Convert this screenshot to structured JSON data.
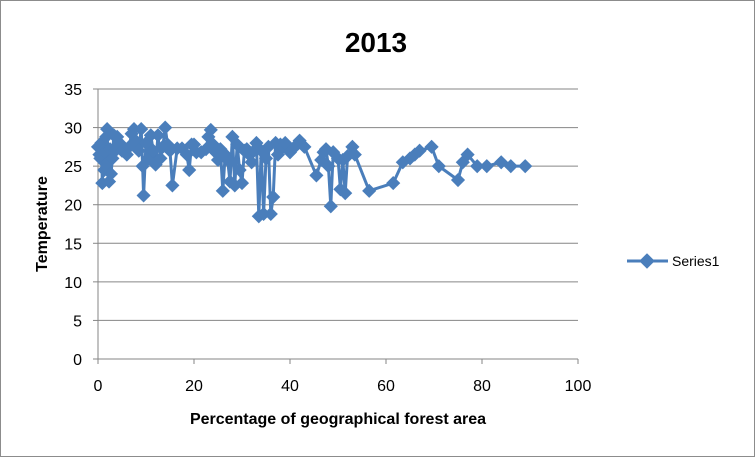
{
  "chart_data": {
    "type": "line",
    "title": "2013",
    "xlabel": "Percentage of geographical forest area",
    "ylabel": "Temperature",
    "xlim": [
      0,
      100
    ],
    "ylim": [
      0,
      35
    ],
    "xticks": [
      0,
      20,
      40,
      60,
      80,
      100
    ],
    "yticks": [
      0,
      5,
      10,
      15,
      20,
      25,
      30,
      35
    ],
    "grid": "horizontal",
    "legend": "right",
    "series": [
      {
        "name": "Series1",
        "color": "#4a7ebb",
        "marker": "diamond",
        "points": [
          [
            0.0,
            27.5
          ],
          [
            0.3,
            26.5
          ],
          [
            0.5,
            26.0
          ],
          [
            0.7,
            28.0
          ],
          [
            0.9,
            22.8
          ],
          [
            1.1,
            27.0
          ],
          [
            1.3,
            24.5
          ],
          [
            1.5,
            26.8
          ],
          [
            1.7,
            28.8
          ],
          [
            1.9,
            29.8
          ],
          [
            2.1,
            25.5
          ],
          [
            2.3,
            23.0
          ],
          [
            2.5,
            27.2
          ],
          [
            2.7,
            24.0
          ],
          [
            3.0,
            26.0
          ],
          [
            3.3,
            29.0
          ],
          [
            3.6,
            27.0
          ],
          [
            4.0,
            28.8
          ],
          [
            4.5,
            28.0
          ],
          [
            5.0,
            27.0
          ],
          [
            6.0,
            26.5
          ],
          [
            6.5,
            27.5
          ],
          [
            7.0,
            29.2
          ],
          [
            7.5,
            29.8
          ],
          [
            8.0,
            28.2
          ],
          [
            8.5,
            27.0
          ],
          [
            9.0,
            29.8
          ],
          [
            9.3,
            25.0
          ],
          [
            9.5,
            21.2
          ],
          [
            10.0,
            28.0
          ],
          [
            10.5,
            26.0
          ],
          [
            11.0,
            29.0
          ],
          [
            11.5,
            27.0
          ],
          [
            12.0,
            25.2
          ],
          [
            12.5,
            29.0
          ],
          [
            13.0,
            26.0
          ],
          [
            13.5,
            27.5
          ],
          [
            14.0,
            30.0
          ],
          [
            14.5,
            27.8
          ],
          [
            15.0,
            27.0
          ],
          [
            15.5,
            22.5
          ],
          [
            16.5,
            27.3
          ],
          [
            17.5,
            27.3
          ],
          [
            18.5,
            26.5
          ],
          [
            19.0,
            24.5
          ],
          [
            19.5,
            27.8
          ],
          [
            20.0,
            27.8
          ],
          [
            20.5,
            26.8
          ],
          [
            21.5,
            26.8
          ],
          [
            22.5,
            27.2
          ],
          [
            23.0,
            28.8
          ],
          [
            23.5,
            29.7
          ],
          [
            24.0,
            27.8
          ],
          [
            24.5,
            26.8
          ],
          [
            25.0,
            25.8
          ],
          [
            25.5,
            27.2
          ],
          [
            26.0,
            21.8
          ],
          [
            26.5,
            26.5
          ],
          [
            27.0,
            25.8
          ],
          [
            27.5,
            23.0
          ],
          [
            28.0,
            28.8
          ],
          [
            28.5,
            22.5
          ],
          [
            29.0,
            27.8
          ],
          [
            29.5,
            24.5
          ],
          [
            30.0,
            22.8
          ],
          [
            30.5,
            27.0
          ],
          [
            31.0,
            27.2
          ],
          [
            31.5,
            26.5
          ],
          [
            32.0,
            25.5
          ],
          [
            32.5,
            27.0
          ],
          [
            33.0,
            28.0
          ],
          [
            33.5,
            18.5
          ],
          [
            34.0,
            27.0
          ],
          [
            34.5,
            18.8
          ],
          [
            35.0,
            26.0
          ],
          [
            35.5,
            27.5
          ],
          [
            36.0,
            18.8
          ],
          [
            36.5,
            21.0
          ],
          [
            37.0,
            28.0
          ],
          [
            37.5,
            26.5
          ],
          [
            38.0,
            27.8
          ],
          [
            38.5,
            27.5
          ],
          [
            39.0,
            28.0
          ],
          [
            40.0,
            26.8
          ],
          [
            41.0,
            27.5
          ],
          [
            42.0,
            28.3
          ],
          [
            43.0,
            27.5
          ],
          [
            45.5,
            23.8
          ],
          [
            46.5,
            25.8
          ],
          [
            47.0,
            26.8
          ],
          [
            47.5,
            27.2
          ],
          [
            48.0,
            25.0
          ],
          [
            48.5,
            19.8
          ],
          [
            49.0,
            26.8
          ],
          [
            50.0,
            26.0
          ],
          [
            50.5,
            22.0
          ],
          [
            51.0,
            25.8
          ],
          [
            51.5,
            21.5
          ],
          [
            52.0,
            26.3
          ],
          [
            53.0,
            27.5
          ],
          [
            53.5,
            26.5
          ],
          [
            56.5,
            21.8
          ],
          [
            61.5,
            22.8
          ],
          [
            63.5,
            25.5
          ],
          [
            65.0,
            26.0
          ],
          [
            66.0,
            26.5
          ],
          [
            67.0,
            27.0
          ],
          [
            69.5,
            27.5
          ],
          [
            71.0,
            25.0
          ],
          [
            75.0,
            23.2
          ],
          [
            76.0,
            25.5
          ],
          [
            77.0,
            26.5
          ],
          [
            79.0,
            25.0
          ],
          [
            81.0,
            25.0
          ],
          [
            84.0,
            25.5
          ],
          [
            86.0,
            25.0
          ],
          [
            89.0,
            25.0
          ]
        ]
      }
    ]
  }
}
